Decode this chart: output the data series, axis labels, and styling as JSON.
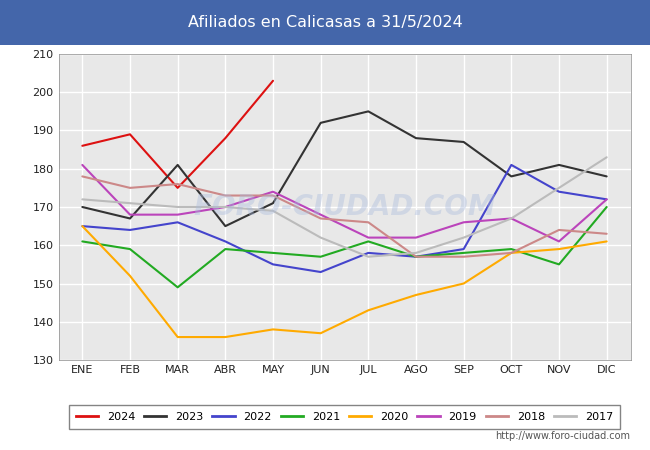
{
  "title": "Afiliados en Calicasas a 31/5/2024",
  "ylim": [
    130,
    210
  ],
  "yticks": [
    130,
    140,
    150,
    160,
    170,
    180,
    190,
    200,
    210
  ],
  "months": [
    "ENE",
    "FEB",
    "MAR",
    "ABR",
    "MAY",
    "JUN",
    "JUL",
    "AGO",
    "SEP",
    "OCT",
    "NOV",
    "DIC"
  ],
  "watermark": "FORO-CIUDAD.COM",
  "url": "http://www.foro-ciudad.com",
  "title_bg_color": "#4466aa",
  "title_text_color": "#ffffff",
  "outer_bg_color": "#ffffff",
  "plot_bg_color": "#e8e8e8",
  "grid_color": "#ffffff",
  "series": [
    {
      "year": "2024",
      "color": "#dd1111",
      "data": [
        186,
        189,
        175,
        188,
        203,
        null,
        null,
        null,
        null,
        null,
        null,
        null
      ]
    },
    {
      "year": "2023",
      "color": "#333333",
      "data": [
        170,
        167,
        181,
        165,
        171,
        192,
        195,
        188,
        187,
        178,
        181,
        178
      ]
    },
    {
      "year": "2022",
      "color": "#4444cc",
      "data": [
        165,
        164,
        166,
        161,
        155,
        153,
        158,
        157,
        159,
        181,
        174,
        172
      ]
    },
    {
      "year": "2021",
      "color": "#22aa22",
      "data": [
        161,
        159,
        149,
        159,
        158,
        157,
        161,
        157,
        158,
        159,
        155,
        170
      ]
    },
    {
      "year": "2020",
      "color": "#ffaa00",
      "data": [
        165,
        152,
        136,
        136,
        138,
        137,
        143,
        147,
        150,
        158,
        159,
        161
      ]
    },
    {
      "year": "2019",
      "color": "#bb44bb",
      "data": [
        181,
        168,
        168,
        170,
        174,
        168,
        162,
        162,
        166,
        167,
        161,
        172
      ]
    },
    {
      "year": "2018",
      "color": "#cc8888",
      "data": [
        178,
        175,
        176,
        173,
        173,
        167,
        166,
        157,
        157,
        158,
        164,
        163
      ]
    },
    {
      "year": "2017",
      "color": "#bbbbbb",
      "data": [
        172,
        171,
        170,
        170,
        169,
        162,
        157,
        158,
        162,
        167,
        175,
        183
      ]
    }
  ]
}
